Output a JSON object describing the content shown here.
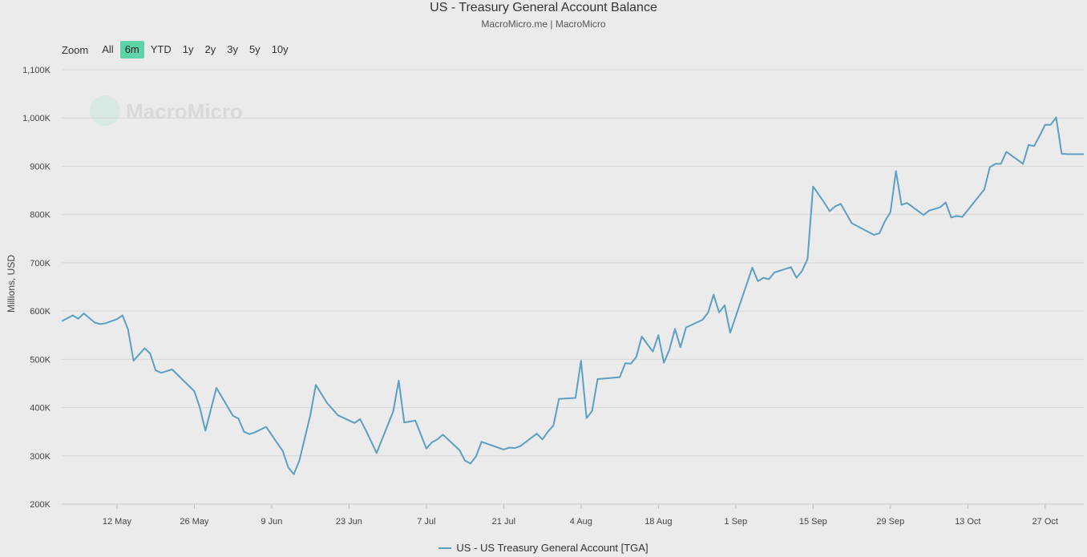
{
  "title": "US - Treasury General Account Balance",
  "subtitle": "MacroMicro.me | MacroMicro",
  "watermark": "MacroMicro",
  "range_selector": {
    "zoom_label": "Zoom",
    "buttons": [
      "All",
      "6m",
      "YTD",
      "1y",
      "2y",
      "3y",
      "5y",
      "10y"
    ],
    "active": "6m"
  },
  "colors": {
    "line": "#5b9fc3",
    "active_button": "#5fd3a8",
    "grid": "#d6d6d6"
  },
  "chart_data": {
    "type": "line",
    "title": "US - Treasury General Account Balance",
    "subtitle": "MacroMicro.me | MacroMicro",
    "ylabel": "Millions, USD",
    "xlabel": "",
    "ylim": [
      200000,
      1100000
    ],
    "xlim": [
      "2023-05-02",
      "2023-11-03"
    ],
    "grid": true,
    "legend_position": "bottom-center",
    "y_ticks": [
      {
        "value": 200000,
        "label": "200K"
      },
      {
        "value": 300000,
        "label": "300K"
      },
      {
        "value": 400000,
        "label": "400K"
      },
      {
        "value": 500000,
        "label": "500K"
      },
      {
        "value": 600000,
        "label": "600K"
      },
      {
        "value": 700000,
        "label": "700K"
      },
      {
        "value": 800000,
        "label": "800K"
      },
      {
        "value": 900000,
        "label": "900K"
      },
      {
        "value": 1000000,
        "label": "1,000K"
      },
      {
        "value": 1100000,
        "label": "1,100K"
      }
    ],
    "x_ticks": [
      {
        "date": "2023-05-12",
        "label": "12 May"
      },
      {
        "date": "2023-05-26",
        "label": "26 May"
      },
      {
        "date": "2023-06-09",
        "label": "9 Jun"
      },
      {
        "date": "2023-06-23",
        "label": "23 Jun"
      },
      {
        "date": "2023-07-07",
        "label": "7 Jul"
      },
      {
        "date": "2023-07-21",
        "label": "21 Jul"
      },
      {
        "date": "2023-08-04",
        "label": "4 Aug"
      },
      {
        "date": "2023-08-18",
        "label": "18 Aug"
      },
      {
        "date": "2023-09-01",
        "label": "1 Sep"
      },
      {
        "date": "2023-09-15",
        "label": "15 Sep"
      },
      {
        "date": "2023-09-29",
        "label": "29 Sep"
      },
      {
        "date": "2023-10-13",
        "label": "13 Oct"
      },
      {
        "date": "2023-10-27",
        "label": "27 Oct"
      }
    ],
    "series": [
      {
        "name": "US - US Treasury General Account [TGA]",
        "x": [
          "2023-05-02",
          "2023-05-04",
          "2023-05-05",
          "2023-05-06",
          "2023-05-08",
          "2023-05-09",
          "2023-05-10",
          "2023-05-12",
          "2023-05-13",
          "2023-05-14",
          "2023-05-15",
          "2023-05-17",
          "2023-05-18",
          "2023-05-19",
          "2023-05-20",
          "2023-05-22",
          "2023-05-26",
          "2023-05-27",
          "2023-05-28",
          "2023-05-30",
          "2023-06-02",
          "2023-06-03",
          "2023-06-04",
          "2023-06-05",
          "2023-06-06",
          "2023-06-08",
          "2023-06-11",
          "2023-06-12",
          "2023-06-13",
          "2023-06-14",
          "2023-06-16",
          "2023-06-17",
          "2023-06-19",
          "2023-06-21",
          "2023-06-24",
          "2023-06-25",
          "2023-06-26",
          "2023-06-28",
          "2023-07-01",
          "2023-07-02",
          "2023-07-03",
          "2023-07-05",
          "2023-07-07",
          "2023-07-08",
          "2023-07-09",
          "2023-07-10",
          "2023-07-13",
          "2023-07-14",
          "2023-07-15",
          "2023-07-16",
          "2023-07-17",
          "2023-07-21",
          "2023-07-22",
          "2023-07-23",
          "2023-07-24",
          "2023-07-27",
          "2023-07-28",
          "2023-07-29",
          "2023-07-30",
          "2023-07-31",
          "2023-08-03",
          "2023-08-04",
          "2023-08-05",
          "2023-08-06",
          "2023-08-07",
          "2023-08-11",
          "2023-08-12",
          "2023-08-13",
          "2023-08-14",
          "2023-08-15",
          "2023-08-17",
          "2023-08-18",
          "2023-08-19",
          "2023-08-20",
          "2023-08-21",
          "2023-08-22",
          "2023-08-23",
          "2023-08-26",
          "2023-08-27",
          "2023-08-28",
          "2023-08-29",
          "2023-08-30",
          "2023-08-31",
          "2023-09-04",
          "2023-09-05",
          "2023-09-06",
          "2023-09-07",
          "2023-09-08",
          "2023-09-11",
          "2023-09-12",
          "2023-09-13",
          "2023-09-14",
          "2023-09-15",
          "2023-09-17",
          "2023-09-18",
          "2023-09-19",
          "2023-09-20",
          "2023-09-22",
          "2023-09-26",
          "2023-09-27",
          "2023-09-28",
          "2023-09-29",
          "2023-09-30",
          "2023-10-01",
          "2023-10-02",
          "2023-10-05",
          "2023-10-06",
          "2023-10-08",
          "2023-10-09",
          "2023-10-10",
          "2023-10-11",
          "2023-10-12",
          "2023-10-16",
          "2023-10-17",
          "2023-10-18",
          "2023-10-19",
          "2023-10-20",
          "2023-10-23",
          "2023-10-24",
          "2023-10-25",
          "2023-10-26",
          "2023-10-27",
          "2023-10-28",
          "2023-10-29",
          "2023-10-30",
          "2023-10-31",
          "2023-11-03"
        ],
        "values": [
          579,
          591,
          584,
          595,
          576,
          573,
          575,
          583,
          591,
          562,
          497,
          523,
          512,
          477,
          472,
          479,
          434,
          400,
          352,
          441,
          383,
          377,
          350,
          345,
          349,
          360,
          310,
          276,
          262,
          290,
          384,
          447,
          410,
          384,
          368,
          376,
          354,
          306,
          392,
          456,
          369,
          373,
          315,
          328,
          334,
          344,
          312,
          290,
          284,
          299,
          329,
          313,
          317,
          316,
          320,
          346,
          334,
          350,
          363,
          418,
          420,
          497,
          378,
          393,
          459,
          463,
          492,
          491,
          505,
          547,
          516,
          550,
          493,
          520,
          563,
          525,
          566,
          582,
          597,
          634,
          597,
          612,
          555,
          690,
          662,
          669,
          666,
          680,
          691,
          669,
          683,
          708,
          858,
          825,
          807,
          817,
          822,
          782,
          758,
          761,
          786,
          805,
          890,
          820,
          824,
          799,
          808,
          815,
          825,
          794,
          797,
          795,
          852,
          898,
          905,
          905,
          930,
          905,
          944,
          942,
          963,
          986,
          986,
          1001,
          926,
          925,
          925
        ]
      }
    ],
    "values_unit_note": "values in thousands of millions USD (K)"
  }
}
